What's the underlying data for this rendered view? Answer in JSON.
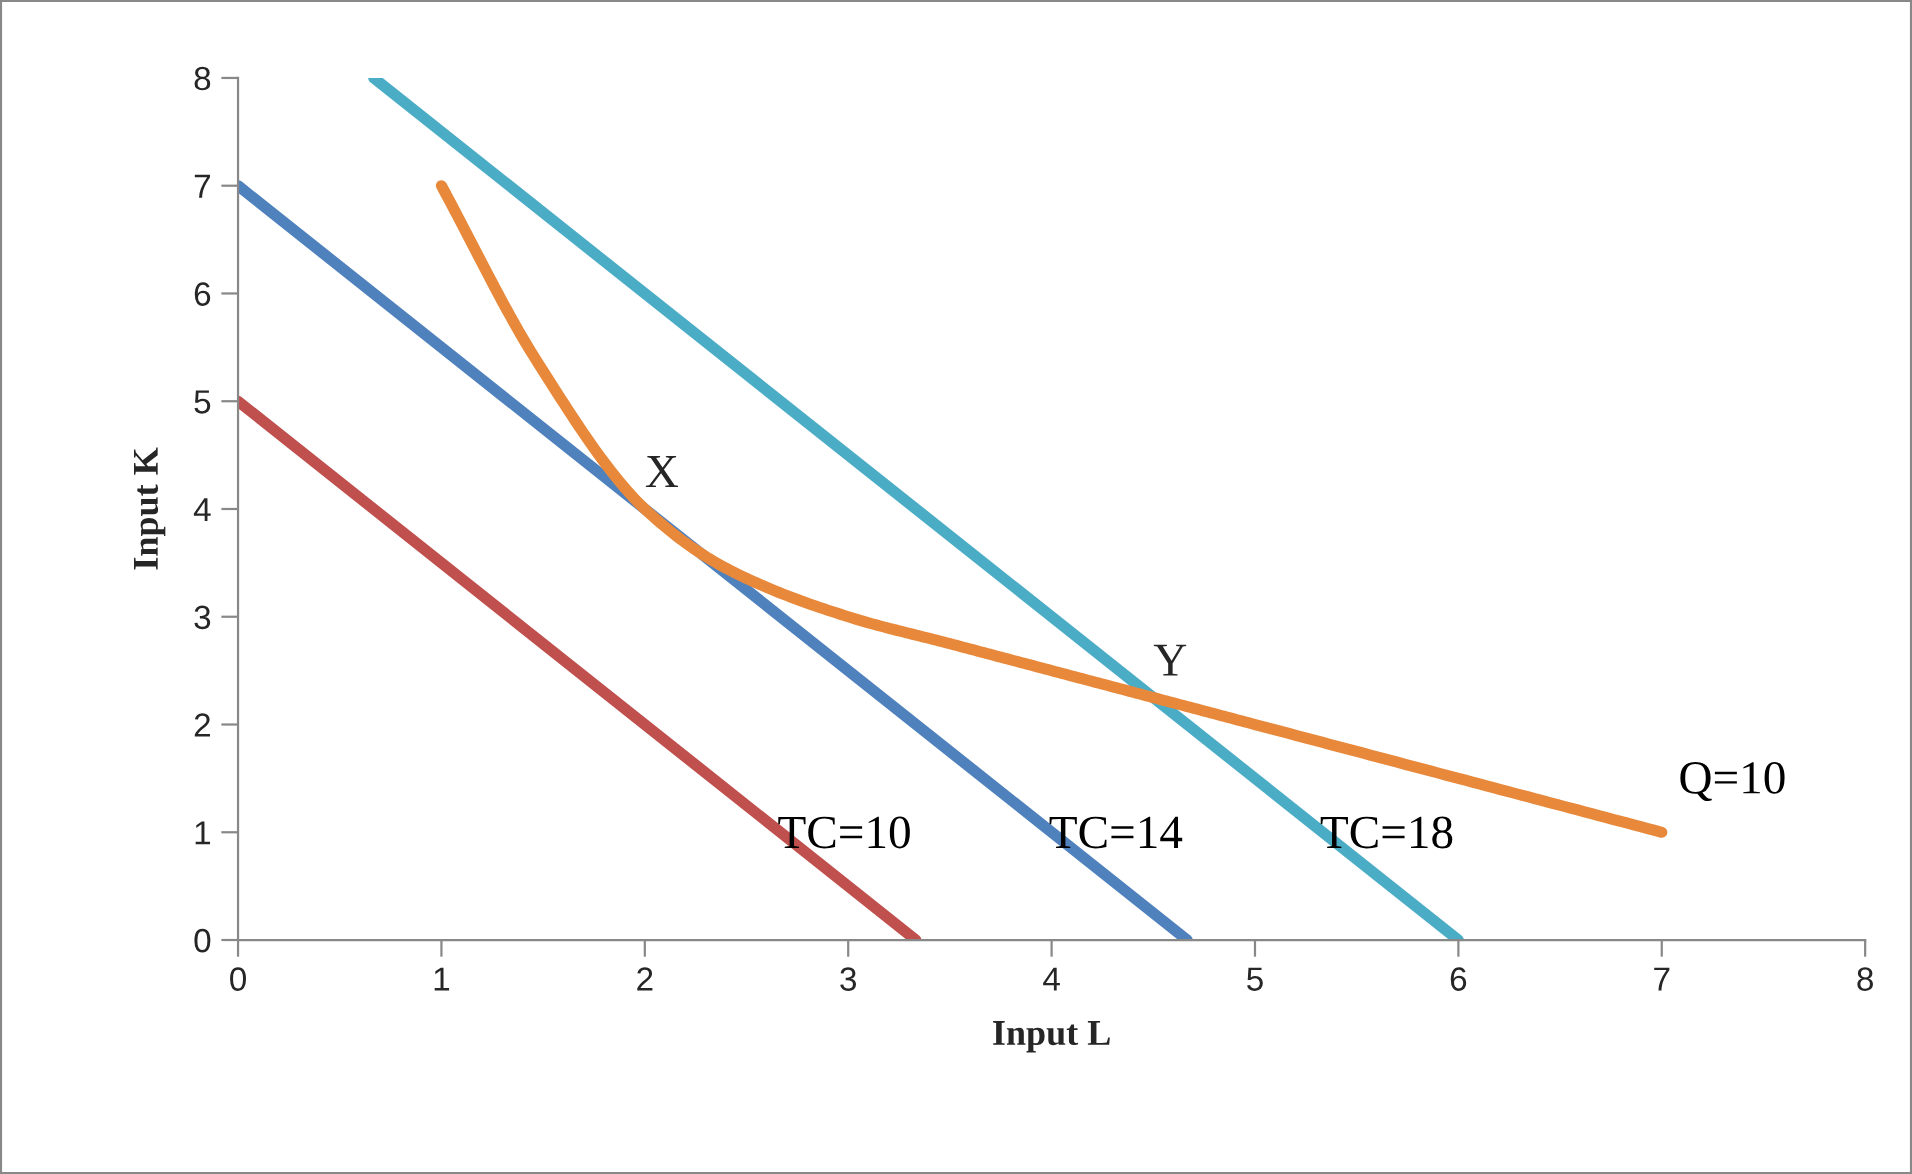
{
  "chart_data": {
    "type": "line",
    "xlabel": "Input L",
    "ylabel": "Input K",
    "xlim": [
      0,
      8
    ],
    "ylim": [
      0,
      8
    ],
    "xticks": [
      0,
      1,
      2,
      3,
      4,
      5,
      6,
      7,
      8
    ],
    "yticks": [
      0,
      1,
      2,
      3,
      4,
      5,
      6,
      7,
      8
    ],
    "grid": false,
    "legend": false,
    "marker": "none",
    "line_style": "solid",
    "series": [
      {
        "name": "TC=10",
        "color": "#c0504d",
        "x": [
          0,
          3.333
        ],
        "values": [
          5,
          0
        ]
      },
      {
        "name": "TC=14",
        "color": "#4f81bd",
        "x": [
          0,
          4.667
        ],
        "values": [
          7,
          0
        ]
      },
      {
        "name": "TC=18",
        "color": "#4bacc6",
        "x": [
          0.667,
          6
        ],
        "values": [
          8,
          0
        ]
      },
      {
        "name": "Q=10",
        "color": "#e8883a",
        "x": [
          1,
          1.46,
          2,
          2.4,
          3,
          3.5,
          4,
          4.5,
          5,
          6,
          7
        ],
        "values": [
          7,
          5.4,
          4,
          3.45,
          3,
          2.75,
          2.5,
          2.25,
          2,
          1.5,
          1
        ]
      }
    ],
    "annotations": [
      {
        "text": "X",
        "x": 2,
        "y": 4
      },
      {
        "text": "Y",
        "x": 4.5,
        "y": 2.25
      }
    ]
  }
}
